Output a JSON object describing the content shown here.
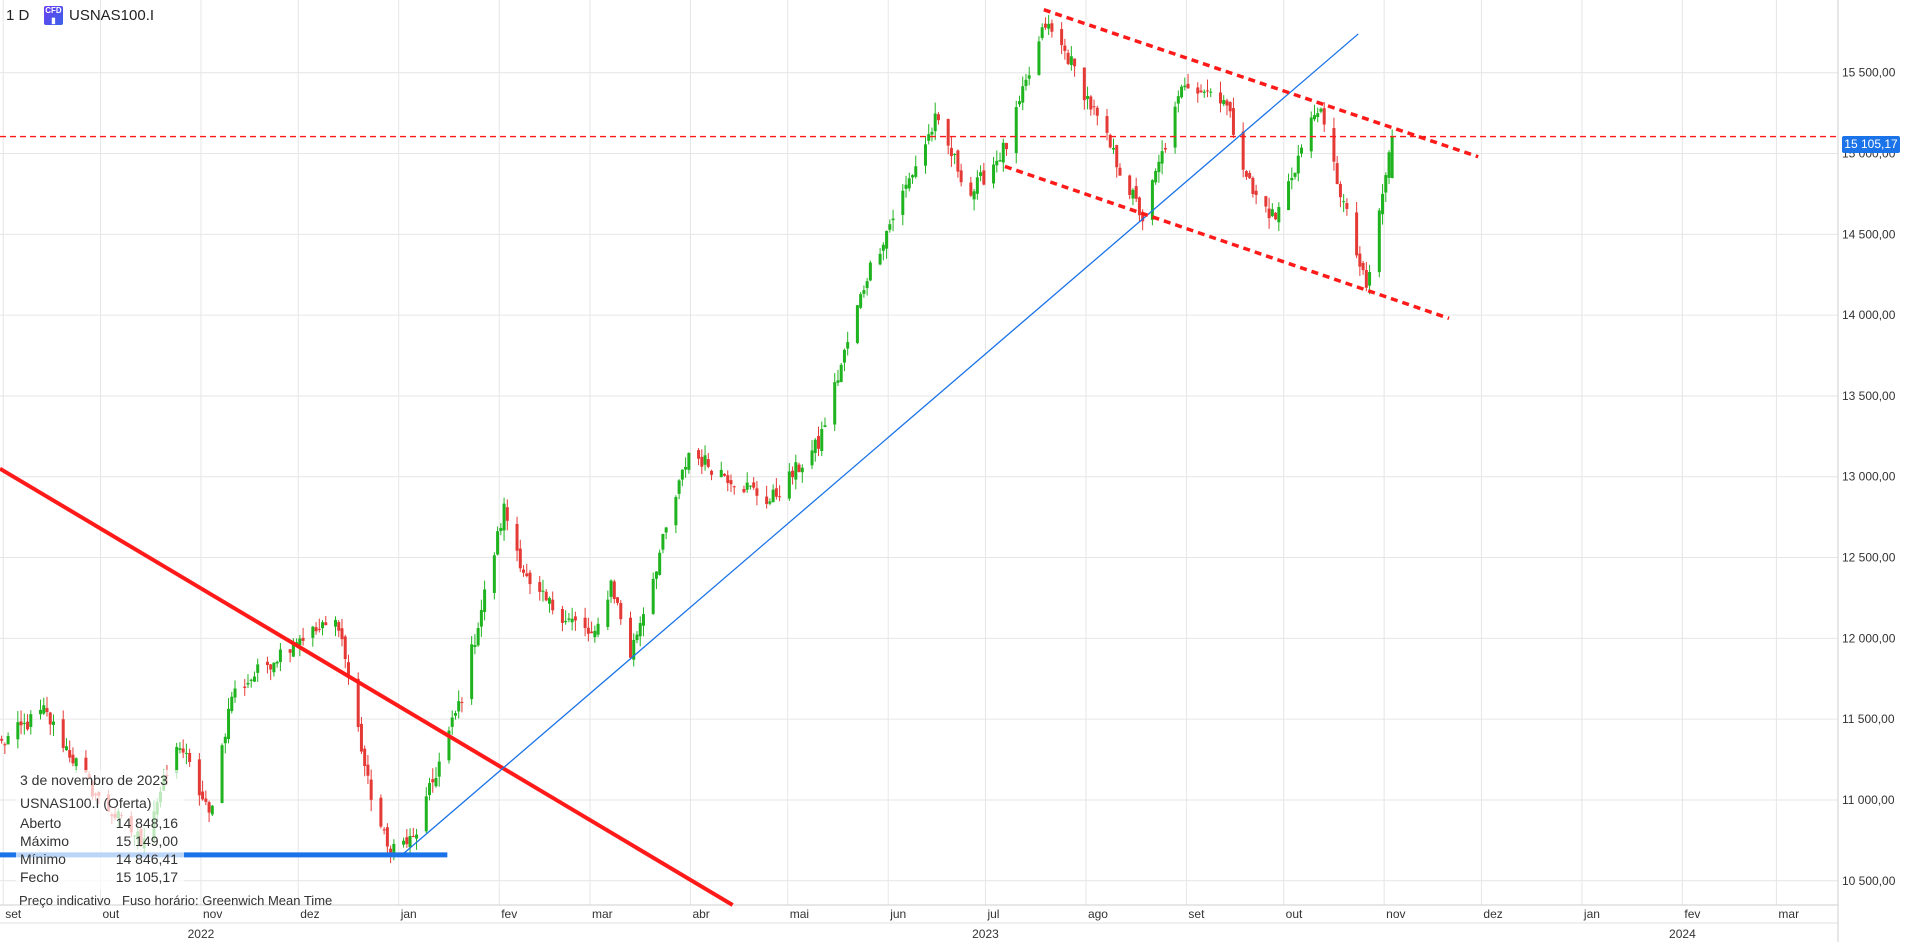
{
  "header": {
    "timeframe": "1 D",
    "symbol": "USNAS100.I",
    "cfd_icon": "cfd-icon"
  },
  "infobox": {
    "date": "3 de novembro de 2023",
    "title": "USNAS100.I (Oferta)",
    "rows": [
      {
        "label": "Aberto",
        "value": "14 848,16"
      },
      {
        "label": "Máximo",
        "value": "15 149,00"
      },
      {
        "label": "Mínimo",
        "value": "14 846,41"
      },
      {
        "label": "Fecho",
        "value": "15 105,17"
      }
    ]
  },
  "footer": {
    "indicative": "Preço indicativo",
    "timezone": "Fuso horário: Greenwich Mean Time"
  },
  "last_price_label": "15 105,17",
  "colors": {
    "up": "#1fb31f",
    "down": "#e53935",
    "trend_red": "#ff1a1a",
    "trend_blue": "#1a73e8",
    "grid": "#e6e6e6"
  },
  "chart_data": {
    "type": "candlestick",
    "symbol": "USNAS100.I",
    "timeframe": "1 D",
    "y_ticks": [
      10500,
      11000,
      11500,
      12000,
      12500,
      13000,
      13500,
      14000,
      14500,
      15000,
      15500
    ],
    "y_tick_labels": [
      "10 500,00",
      "11 000,00",
      "11 500,00",
      "12 000,00",
      "12 500,00",
      "13 000,00",
      "13 500,00",
      "14 000,00",
      "14 500,00",
      "15 000,00",
      "15 500,00"
    ],
    "ylim": [
      10350,
      15950
    ],
    "months": [
      {
        "label": "set",
        "date": "2022-09-01"
      },
      {
        "label": "out",
        "date": "2022-10-01"
      },
      {
        "label": "nov",
        "date": "2022-11-01"
      },
      {
        "label": "dez",
        "date": "2022-12-01"
      },
      {
        "label": "jan",
        "date": "2023-01-01"
      },
      {
        "label": "fev",
        "date": "2023-02-01"
      },
      {
        "label": "mar",
        "date": "2023-03-01"
      },
      {
        "label": "abr",
        "date": "2023-04-01"
      },
      {
        "label": "mai",
        "date": "2023-05-01"
      },
      {
        "label": "jun",
        "date": "2023-06-01"
      },
      {
        "label": "jul",
        "date": "2023-07-01"
      },
      {
        "label": "ago",
        "date": "2023-08-01"
      },
      {
        "label": "set",
        "date": "2023-09-01"
      },
      {
        "label": "out",
        "date": "2023-10-01"
      },
      {
        "label": "nov",
        "date": "2023-11-01"
      },
      {
        "label": "dez",
        "date": "2023-12-01"
      },
      {
        "label": "jan",
        "date": "2024-01-01"
      },
      {
        "label": "fev",
        "date": "2024-02-01"
      },
      {
        "label": "mar",
        "date": "2024-03-01"
      }
    ],
    "years": [
      {
        "label": "2022",
        "date": "2022-11-01"
      },
      {
        "label": "2023",
        "date": "2023-07-01"
      },
      {
        "label": "2024",
        "date": "2024-02-01"
      }
    ],
    "xlim": [
      "2022-08-31",
      "2024-03-20"
    ],
    "last_price": 15105.17,
    "last_bar": {
      "date": "2023-11-03",
      "open": 14848.16,
      "high": 15149.0,
      "low": 14846.41,
      "close": 15105.17
    },
    "anchors": [
      [
        "2022-08-31",
        11350
      ],
      [
        "2022-09-13",
        11550
      ],
      [
        "2022-09-30",
        11000
      ],
      [
        "2022-10-13",
        10750
      ],
      [
        "2022-10-25",
        11350
      ],
      [
        "2022-11-03",
        10900
      ],
      [
        "2022-11-10",
        11650
      ],
      [
        "2022-11-30",
        12000
      ],
      [
        "2022-12-13",
        12100
      ],
      [
        "2022-12-22",
        11100
      ],
      [
        "2022-12-28",
        10700
      ],
      [
        "2023-01-05",
        10750
      ],
      [
        "2023-01-20",
        11650
      ],
      [
        "2023-02-02",
        12800
      ],
      [
        "2023-02-10",
        12300
      ],
      [
        "2023-03-02",
        12000
      ],
      [
        "2023-03-07",
        12350
      ],
      [
        "2023-03-13",
        11900
      ],
      [
        "2023-03-31",
        13150
      ],
      [
        "2023-04-25",
        12850
      ],
      [
        "2023-05-10",
        13200
      ],
      [
        "2023-05-25",
        14250
      ],
      [
        "2023-06-15",
        15200
      ],
      [
        "2023-06-26",
        14750
      ],
      [
        "2023-07-07",
        15050
      ],
      [
        "2023-07-19",
        15800
      ],
      [
        "2023-07-26",
        15600
      ],
      [
        "2023-08-18",
        14600
      ],
      [
        "2023-08-31",
        15450
      ],
      [
        "2023-09-12",
        15350
      ],
      [
        "2023-09-21",
        14750
      ],
      [
        "2023-09-28",
        14600
      ],
      [
        "2023-10-11",
        15300
      ],
      [
        "2023-10-26",
        14150
      ],
      [
        "2023-11-03",
        15105
      ]
    ],
    "drawings": [
      {
        "kind": "trendline",
        "style": "solid-red",
        "from": [
          "2022-08-31",
          13050
        ],
        "to": [
          "2023-04-14",
          10350
        ]
      },
      {
        "kind": "trendline",
        "style": "solid-blue",
        "from": [
          "2023-01-02",
          10660
        ],
        "to": [
          "2023-10-24",
          15740
        ]
      },
      {
        "kind": "hline",
        "style": "solid-blue-thick",
        "from": [
          "2022-08-31",
          10660
        ],
        "to": [
          "2023-01-16",
          10660
        ]
      },
      {
        "kind": "hline",
        "style": "dashed-red",
        "value": 15105.17
      },
      {
        "kind": "channel-line",
        "style": "dashed-red",
        "from": [
          "2023-07-19",
          15890
        ],
        "to": [
          "2023-11-30",
          14980
        ]
      },
      {
        "kind": "channel-line",
        "style": "dashed-red",
        "from": [
          "2023-07-07",
          14920
        ],
        "to": [
          "2023-11-21",
          13980
        ]
      }
    ]
  }
}
